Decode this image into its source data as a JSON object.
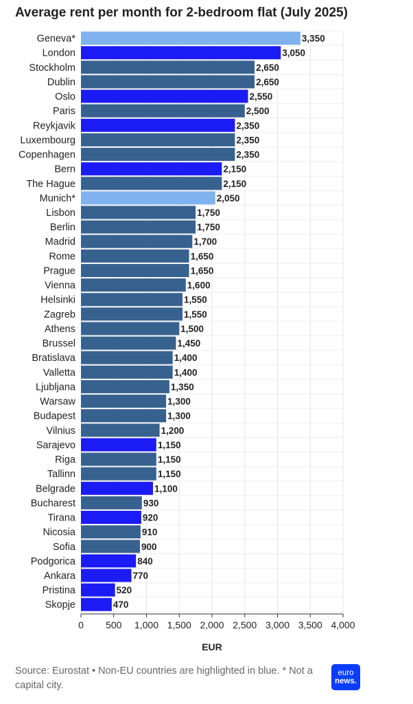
{
  "title": "Average rent per month for 2-bedroom flat (July 2025)",
  "footer": {
    "note": "Source: Eurostat • Non-EU countries are highlighted in blue. * Not a capital city.",
    "logo_line1": "euro",
    "logo_line2": "news."
  },
  "colors": {
    "eu": "#37628f",
    "non_eu": "#1b1bf5",
    "not_capital": "#7fb2ee"
  },
  "chart_data": {
    "type": "bar",
    "orientation": "horizontal",
    "title": "Average rent per month for 2-bedroom flat (July 2025)",
    "xlabel": "EUR",
    "xlim": [
      0,
      4000
    ],
    "xticks": [
      0,
      500,
      1000,
      1500,
      2000,
      2500,
      3000,
      3500,
      4000
    ],
    "xtick_labels": [
      "0",
      "500",
      "1,000",
      "1,500",
      "2,000",
      "2,500",
      "3,000",
      "3,500",
      "4,000"
    ],
    "grid": "vertical",
    "categories": [
      "Geneva*",
      "London",
      "Stockholm",
      "Dublin",
      "Oslo",
      "Paris",
      "Reykjavik",
      "Luxembourg",
      "Copenhagen",
      "Bern",
      "The Hague",
      "Munich*",
      "Lisbon",
      "Berlin",
      "Madrid",
      "Rome",
      "Prague",
      "Vienna",
      "Helsinki",
      "Zagreb",
      "Athens",
      "Brussel",
      "Bratislava",
      "Valletta",
      "Ljubljana",
      "Warsaw",
      "Budapest",
      "Vilnius",
      "Sarajevo",
      "Riga",
      "Tallinn",
      "Belgrade",
      "Bucharest",
      "Tirana",
      "Nicosia",
      "Sofia",
      "Podgorica",
      "Ankara",
      "Pristina",
      "Skopje"
    ],
    "values": [
      3350,
      3050,
      2650,
      2650,
      2550,
      2500,
      2350,
      2350,
      2350,
      2150,
      2150,
      2050,
      1750,
      1750,
      1700,
      1650,
      1650,
      1600,
      1550,
      1550,
      1500,
      1450,
      1400,
      1400,
      1350,
      1300,
      1300,
      1200,
      1150,
      1150,
      1150,
      1100,
      930,
      920,
      910,
      900,
      840,
      770,
      520,
      470
    ],
    "value_labels": [
      "3,350",
      "3,050",
      "2,650",
      "2,650",
      "2,550",
      "2,500",
      "2,350",
      "2,350",
      "2,350",
      "2,150",
      "2,150",
      "2,050",
      "1,750",
      "1,750",
      "1,700",
      "1,650",
      "1,650",
      "1,600",
      "1,550",
      "1,550",
      "1,500",
      "1,450",
      "1,400",
      "1,400",
      "1,350",
      "1,300",
      "1,300",
      "1,200",
      "1,150",
      "1,150",
      "1,150",
      "1,100",
      "930",
      "920",
      "910",
      "900",
      "840",
      "770",
      "520",
      "470"
    ],
    "bar_group": [
      "not_capital",
      "non_eu",
      "eu",
      "eu",
      "non_eu",
      "eu",
      "non_eu",
      "eu",
      "eu",
      "non_eu",
      "eu",
      "not_capital",
      "eu",
      "eu",
      "eu",
      "eu",
      "eu",
      "eu",
      "eu",
      "eu",
      "eu",
      "eu",
      "eu",
      "eu",
      "eu",
      "eu",
      "eu",
      "eu",
      "non_eu",
      "eu",
      "eu",
      "non_eu",
      "eu",
      "non_eu",
      "eu",
      "eu",
      "non_eu",
      "non_eu",
      "non_eu",
      "non_eu"
    ]
  }
}
